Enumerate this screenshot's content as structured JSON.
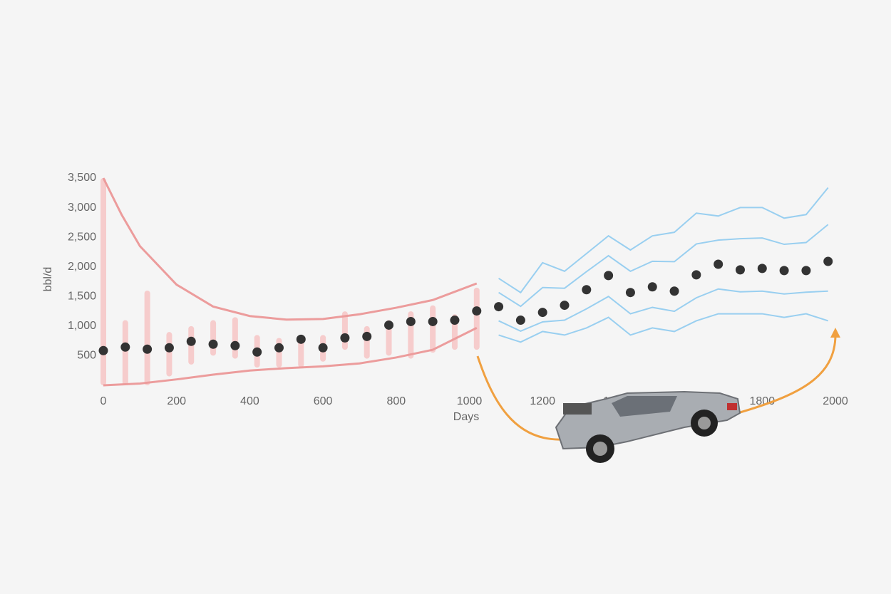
{
  "chart_data": {
    "type": "scatter",
    "x_label": "Days",
    "y_label": "bbl/d",
    "xlim": [
      0,
      2000
    ],
    "ylim": [
      0,
      3500
    ],
    "xticks": [
      0,
      200,
      400,
      600,
      800,
      1000,
      1200,
      1400,
      1600,
      1800,
      2000
    ],
    "yticks": [
      500,
      {
        "value": 1000,
        "label": "1,000"
      },
      {
        "value": 1500,
        "label": "1,500"
      },
      {
        "value": 2000,
        "label": "2,000"
      },
      {
        "value": 2500,
        "label": "2,500"
      },
      {
        "value": 3000,
        "label": "3,000"
      },
      {
        "value": 3500,
        "label": "3,500"
      }
    ],
    "ranges": {
      "color": "#f6c4c4",
      "x": [
        0,
        60,
        120,
        180,
        240,
        300,
        360,
        420,
        480,
        540,
        600,
        660,
        720,
        780,
        840,
        900,
        960,
        1020
      ],
      "low": [
        0,
        0,
        0,
        150,
        350,
        500,
        450,
        300,
        300,
        300,
        400,
        600,
        450,
        500,
        450,
        550,
        600,
        600
      ],
      "high": [
        3500,
        1100,
        1600,
        900,
        1000,
        1100,
        1150,
        850,
        800,
        850,
        850,
        1250,
        1000,
        1100,
        1250,
        1350,
        1200,
        1650
      ]
    },
    "envelope": {
      "color": "#ec9c9c",
      "series": [
        {
          "x": [
            0,
            50,
            100,
            200,
            300,
            400,
            500,
            600,
            700,
            800,
            900,
            1020
          ],
          "values": [
            3500,
            2880,
            2350,
            1700,
            1330,
            1170,
            1110,
            1120,
            1200,
            1310,
            1440,
            1720
          ]
        },
        {
          "x": [
            0,
            100,
            200,
            300,
            400,
            500,
            600,
            700,
            800,
            900,
            1020
          ],
          "values": [
            0,
            30,
            100,
            180,
            250,
            290,
            320,
            370,
            470,
            600,
            970
          ]
        }
      ]
    },
    "simulations": {
      "color": "#8fcbef",
      "x": [
        1080,
        1140,
        1200,
        1260,
        1320,
        1380,
        1440,
        1500,
        1560,
        1620,
        1680,
        1740,
        1800,
        1860,
        1920,
        1980
      ],
      "series": [
        {
          "values": [
            1806,
            1567,
            2070,
            1926,
            2225,
            2524,
            2285,
            2524,
            2584,
            2907,
            2859,
            3002,
            3002,
            2823,
            2883,
            3337
          ]
        },
        {
          "values": [
            1567,
            1334,
            1651,
            1639,
            1920,
            2189,
            1926,
            2094,
            2088,
            2387,
            2452,
            2476,
            2488,
            2381,
            2411,
            2715
          ]
        },
        {
          "values": [
            1089,
            915,
            1071,
            1101,
            1292,
            1501,
            1208,
            1316,
            1250,
            1478,
            1627,
            1579,
            1591,
            1543,
            1573,
            1591
          ]
        },
        {
          "values": [
            849,
            730,
            909,
            849,
            969,
            1148,
            849,
            969,
            909,
            1089,
            1208,
            1208,
            1208,
            1148,
            1208,
            1089
          ]
        }
      ]
    },
    "points": {
      "color": "#333333",
      "x": [
        0,
        60,
        120,
        180,
        240,
        300,
        360,
        420,
        480,
        540,
        600,
        660,
        720,
        780,
        840,
        900,
        960,
        1020,
        1080,
        1140,
        1200,
        1260,
        1320,
        1380,
        1440,
        1500,
        1560,
        1620,
        1680,
        1740,
        1800,
        1860,
        1920,
        1980
      ],
      "values": [
        586,
        646,
        610,
        634,
        742,
        694,
        670,
        562,
        634,
        778,
        634,
        801,
        825,
        1017,
        1077,
        1077,
        1100,
        1256,
        1328,
        1100,
        1232,
        1352,
        1615,
        1854,
        1567,
        1663,
        1591,
        1866,
        2045,
        1950,
        1974,
        1938,
        1938,
        2093
      ]
    }
  }
}
